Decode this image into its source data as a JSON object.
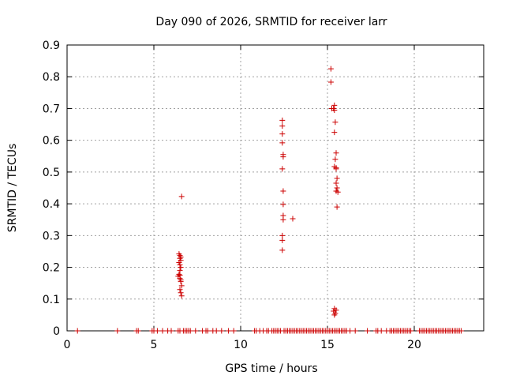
{
  "chart_data": {
    "type": "scatter",
    "title": "Day 090 of 2026, SRMTID for receiver larr",
    "xlabel": "GPS time / hours",
    "ylabel": "SRMTID / TECUs",
    "xlim": [
      0,
      24
    ],
    "ylim": [
      0,
      0.9
    ],
    "xticks": [
      0,
      5,
      10,
      15,
      20
    ],
    "yticks": [
      0,
      0.1,
      0.2,
      0.3,
      0.4,
      0.5,
      0.6,
      0.7,
      0.8,
      0.9
    ],
    "grid": true,
    "legend": "none",
    "marker": "plus",
    "color": "#cc0000",
    "series": [
      {
        "x": [
          0.6,
          2.9,
          4.0,
          4.1,
          4.9,
          5.0,
          5.2,
          5.5,
          5.8,
          6.0,
          6.4,
          6.5,
          6.7,
          6.8,
          6.9,
          7.0,
          7.1,
          7.4,
          7.8,
          8.0,
          8.1,
          8.4,
          8.6,
          8.9,
          9.3,
          9.6,
          10.8,
          10.9,
          11.1,
          11.3,
          11.5,
          11.6,
          11.8,
          11.9,
          12.0,
          12.1,
          12.2,
          12.3,
          12.5,
          12.6,
          12.7,
          12.8,
          12.9,
          13.0,
          13.1,
          13.2,
          13.3,
          13.4,
          13.5,
          13.6,
          13.7,
          13.8,
          13.9,
          14.0,
          14.1,
          14.2,
          14.3,
          14.4,
          14.5,
          14.6,
          14.7,
          14.8,
          14.9,
          15.0,
          15.1,
          15.2,
          15.3,
          15.4,
          15.5,
          15.6,
          15.7,
          15.8,
          15.9,
          16.0,
          16.1,
          16.3,
          16.6,
          17.3,
          17.8,
          17.9,
          18.1,
          18.4,
          18.6,
          18.7,
          18.8,
          18.9,
          19.0,
          19.1,
          19.2,
          19.3,
          19.4,
          19.5,
          19.6,
          19.7,
          19.8,
          20.3,
          20.4,
          20.5,
          20.6,
          20.7,
          20.8,
          20.9,
          21.0,
          21.1,
          21.2,
          21.3,
          21.4,
          21.5,
          21.6,
          21.7,
          21.8,
          21.9,
          22.0,
          22.1,
          22.2,
          22.3,
          22.4,
          22.5,
          22.6,
          22.7
        ],
        "y": [
          0,
          0,
          0,
          0,
          0,
          0,
          0,
          0,
          0,
          0,
          0,
          0,
          0,
          0,
          0,
          0,
          0,
          0,
          0,
          0,
          0,
          0,
          0,
          0,
          0,
          0,
          0,
          0,
          0,
          0,
          0,
          0,
          0,
          0,
          0,
          0,
          0,
          0,
          0,
          0,
          0,
          0,
          0,
          0,
          0,
          0,
          0,
          0,
          0,
          0,
          0,
          0,
          0,
          0,
          0,
          0,
          0,
          0,
          0,
          0,
          0,
          0,
          0,
          0,
          0,
          0,
          0,
          0,
          0,
          0,
          0,
          0,
          0,
          0,
          0,
          0,
          0,
          0,
          0,
          0,
          0,
          0,
          0,
          0,
          0,
          0,
          0,
          0,
          0,
          0,
          0,
          0,
          0,
          0,
          0,
          0,
          0,
          0,
          0,
          0,
          0,
          0,
          0,
          0,
          0,
          0,
          0,
          0,
          0,
          0,
          0,
          0,
          0,
          0,
          0,
          0,
          0,
          0,
          0,
          0
        ]
      },
      {
        "x": [
          6.6,
          6.45,
          6.5,
          6.55,
          6.5,
          6.55,
          6.45,
          6.5,
          6.55,
          6.5,
          6.45,
          6.4,
          6.5,
          6.55,
          6.6,
          6.5,
          6.55,
          6.6,
          6.5,
          6.55
        ],
        "y": [
          0.423,
          0.242,
          0.237,
          0.232,
          0.228,
          0.222,
          0.215,
          0.208,
          0.2,
          0.19,
          0.178,
          0.172,
          0.165,
          0.155,
          0.142,
          0.13,
          0.12,
          0.11,
          0.175,
          0.16
        ]
      },
      {
        "x": [
          12.4,
          12.4,
          12.4,
          12.4,
          12.45,
          12.45,
          12.4,
          12.45,
          12.45,
          12.45,
          12.45,
          13.0,
          12.4,
          12.4,
          12.4
        ],
        "y": [
          0.663,
          0.645,
          0.62,
          0.592,
          0.555,
          0.548,
          0.51,
          0.44,
          0.398,
          0.363,
          0.35,
          0.353,
          0.3,
          0.285,
          0.254
        ]
      },
      {
        "x": [
          15.2,
          15.2,
          15.25,
          15.4,
          15.4,
          15.35,
          15.45,
          15.4,
          15.5,
          15.45,
          15.4,
          15.5,
          15.5,
          15.55,
          15.5,
          15.55,
          15.5,
          15.6,
          15.55,
          15.5,
          15.4,
          15.35,
          15.45,
          15.4
        ],
        "y": [
          0.825,
          0.783,
          0.7,
          0.71,
          0.695,
          0.7,
          0.657,
          0.625,
          0.56,
          0.54,
          0.517,
          0.513,
          0.51,
          0.48,
          0.465,
          0.45,
          0.44,
          0.437,
          0.39,
          0.065,
          0.07,
          0.062,
          0.055,
          0.05
        ]
      }
    ]
  }
}
